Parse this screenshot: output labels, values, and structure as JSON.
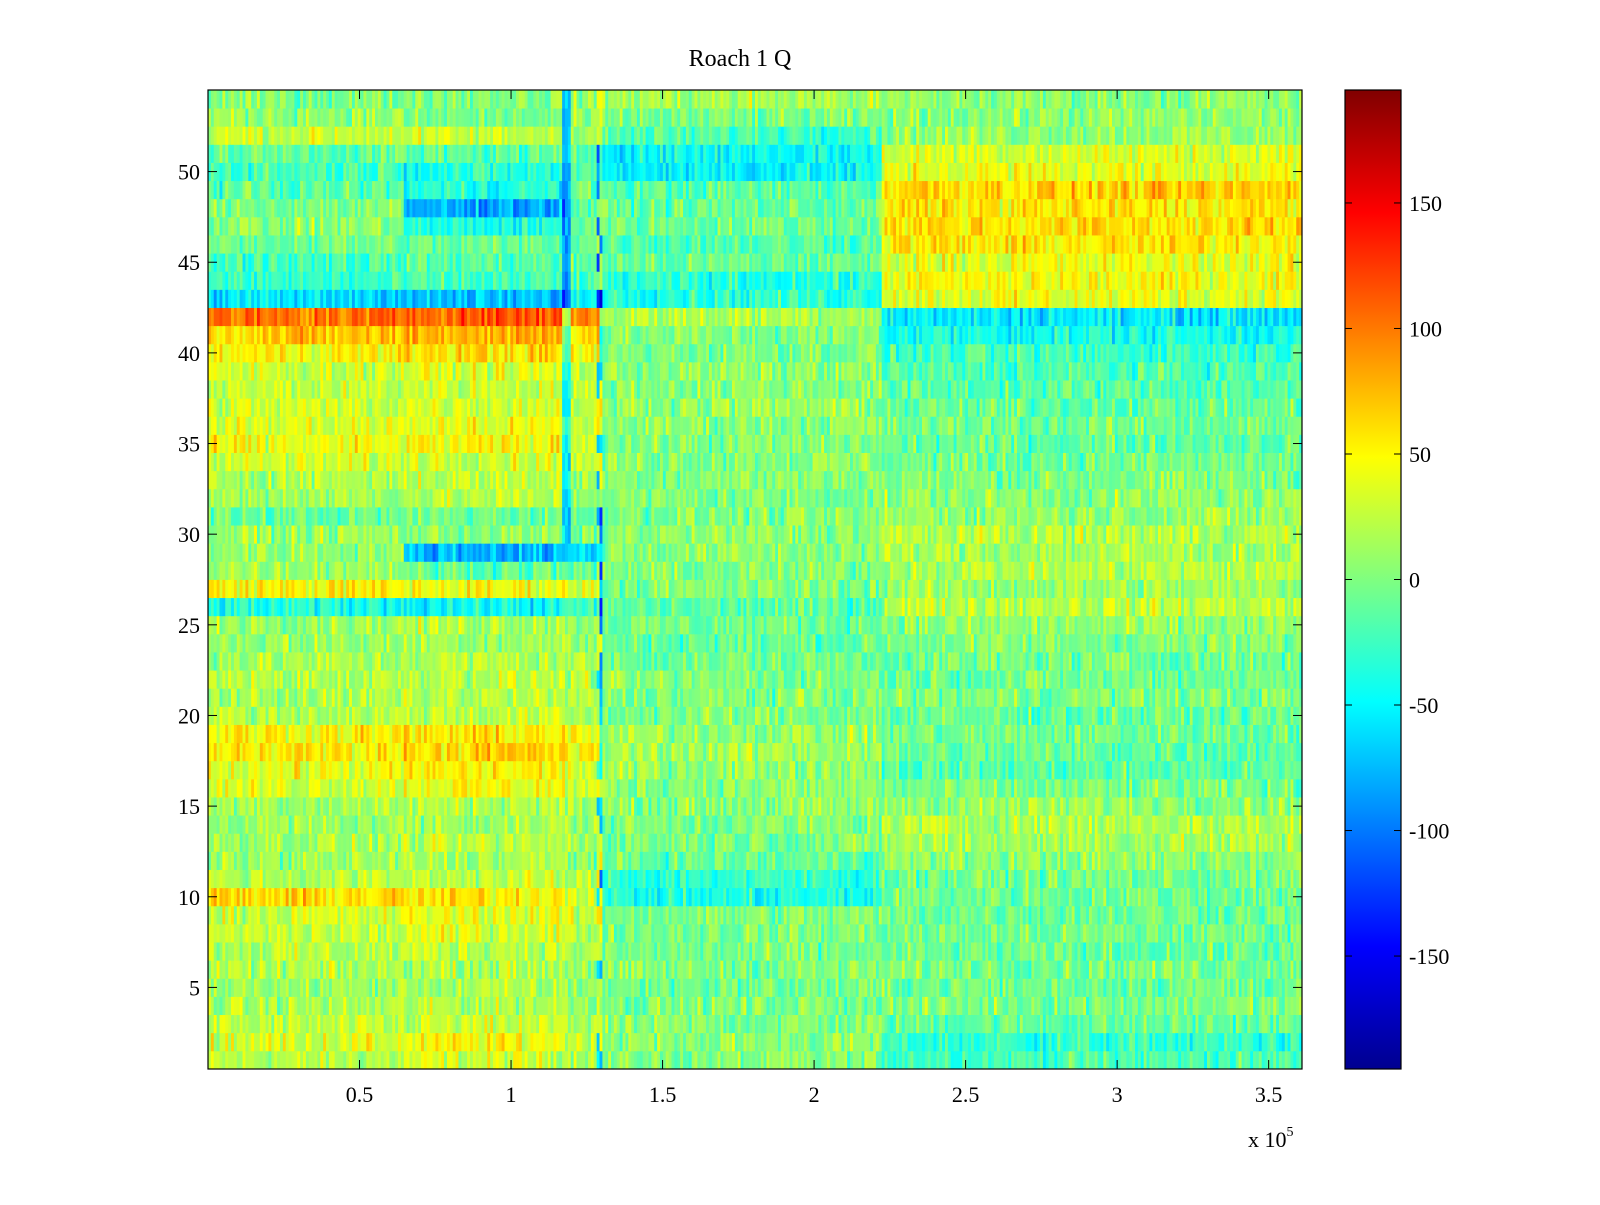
{
  "chart_data": {
    "type": "heatmap",
    "title": "Roach 1 Q",
    "xlabel": "",
    "ylabel": "",
    "x_multiplier_label": "x 10",
    "x_multiplier_exponent": "5",
    "xlim": [
      0,
      3.61
    ],
    "ylim": [
      0.5,
      54.5
    ],
    "x_ticks": [
      0.5,
      1,
      1.5,
      2,
      2.5,
      3,
      3.5
    ],
    "x_tick_labels": [
      "0.5",
      "1",
      "1.5",
      "2",
      "2.5",
      "3",
      "3.5"
    ],
    "y_ticks": [
      5,
      10,
      15,
      20,
      25,
      30,
      35,
      40,
      45,
      50
    ],
    "y_tick_labels": [
      "5",
      "10",
      "15",
      "20",
      "25",
      "30",
      "35",
      "40",
      "45",
      "50"
    ],
    "rows": 54,
    "colorbar": {
      "colormap": "jet",
      "clim": [
        -195,
        195
      ],
      "ticks": [
        150,
        100,
        50,
        0,
        -50,
        -100,
        -150
      ],
      "tick_labels": [
        "150",
        "100",
        "50",
        "0",
        "-50",
        "-100",
        "-150"
      ]
    },
    "segments_x": [
      0,
      0.65,
      1.18,
      1.3,
      2.22,
      3.61
    ],
    "row_means": [
      [
        20,
        30,
        25,
        0,
        -20
      ],
      [
        35,
        45,
        30,
        5,
        -30
      ],
      [
        20,
        25,
        20,
        0,
        -10
      ],
      [
        15,
        20,
        15,
        0,
        0
      ],
      [
        10,
        15,
        10,
        -5,
        -5
      ],
      [
        15,
        20,
        15,
        0,
        0
      ],
      [
        20,
        25,
        15,
        -5,
        -10
      ],
      [
        25,
        35,
        20,
        0,
        -5
      ],
      [
        30,
        40,
        25,
        0,
        -5
      ],
      [
        60,
        55,
        40,
        -40,
        -5
      ],
      [
        20,
        25,
        15,
        -30,
        -5
      ],
      [
        10,
        15,
        10,
        -10,
        5
      ],
      [
        15,
        20,
        15,
        0,
        15
      ],
      [
        10,
        15,
        10,
        0,
        20
      ],
      [
        15,
        20,
        15,
        5,
        10
      ],
      [
        35,
        45,
        30,
        5,
        -5
      ],
      [
        40,
        50,
        35,
        10,
        -15
      ],
      [
        55,
        65,
        45,
        15,
        -10
      ],
      [
        50,
        55,
        40,
        10,
        -5
      ],
      [
        20,
        25,
        15,
        0,
        -10
      ],
      [
        15,
        20,
        15,
        0,
        0
      ],
      [
        20,
        25,
        20,
        0,
        -5
      ],
      [
        15,
        20,
        15,
        -5,
        -5
      ],
      [
        10,
        15,
        10,
        -10,
        0
      ],
      [
        15,
        20,
        10,
        -5,
        5
      ],
      [
        -40,
        -45,
        -30,
        -15,
        25
      ],
      [
        50,
        45,
        35,
        0,
        10
      ],
      [
        15,
        -10,
        -15,
        0,
        20
      ],
      [
        10,
        -75,
        -65,
        5,
        15
      ],
      [
        10,
        5,
        -5,
        5,
        20
      ],
      [
        -10,
        -5,
        -10,
        0,
        10
      ],
      [
        15,
        20,
        10,
        0,
        5
      ],
      [
        20,
        25,
        15,
        5,
        0
      ],
      [
        30,
        35,
        25,
        5,
        -5
      ],
      [
        40,
        45,
        35,
        0,
        -10
      ],
      [
        35,
        40,
        30,
        5,
        -5
      ],
      [
        30,
        35,
        25,
        10,
        -10
      ],
      [
        25,
        30,
        20,
        5,
        -15
      ],
      [
        30,
        35,
        25,
        5,
        -20
      ],
      [
        50,
        60,
        45,
        0,
        -25
      ],
      [
        70,
        80,
        65,
        0,
        -40
      ],
      [
        100,
        115,
        95,
        20,
        -55
      ],
      [
        -60,
        -75,
        -45,
        -30,
        40
      ],
      [
        -30,
        -25,
        -20,
        -35,
        45
      ],
      [
        -20,
        -15,
        -15,
        -10,
        40
      ],
      [
        -5,
        -10,
        -5,
        -15,
        55
      ],
      [
        5,
        -40,
        -5,
        -5,
        60
      ],
      [
        0,
        -80,
        -10,
        -10,
        55
      ],
      [
        -15,
        -35,
        -10,
        -15,
        65
      ],
      [
        -20,
        -35,
        -15,
        -50,
        40
      ],
      [
        -10,
        -15,
        -15,
        -45,
        35
      ],
      [
        30,
        25,
        15,
        -20,
        10
      ],
      [
        10,
        -5,
        0,
        -5,
        5
      ],
      [
        0,
        5,
        10,
        15,
        5
      ]
    ]
  }
}
